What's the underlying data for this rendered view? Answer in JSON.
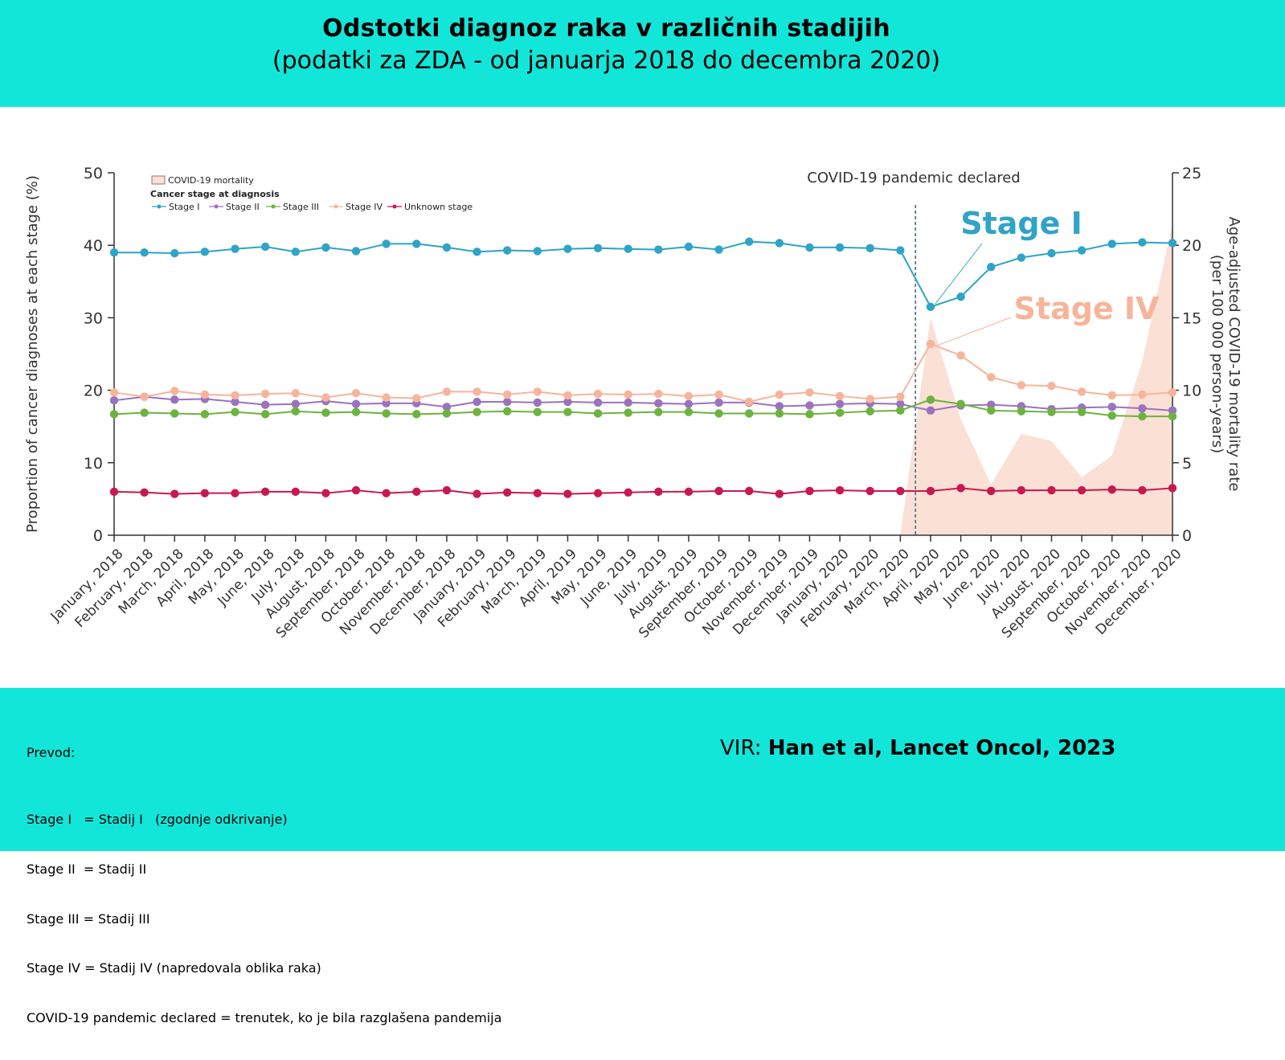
{
  "header": {
    "title": "Odstotki diagnoz raka v različnih stadijih",
    "subtitle": "(podatki za ZDA - od januarja 2018 do decembra 2020)"
  },
  "chart_data": {
    "type": "line",
    "ylabel": "Proportion of cancer diagnoses at each stage (%)",
    "y2label_line1": "Age-adjusted COVID-19 mortality rate",
    "y2label_line2": "(per 100 000 person-years)",
    "ylim": [
      0,
      50
    ],
    "yticks": [
      0,
      10,
      20,
      30,
      40,
      50
    ],
    "y2lim": [
      0,
      25
    ],
    "y2ticks": [
      0,
      5,
      10,
      15,
      20,
      25
    ],
    "annotation": "COVID-19 pandemic declared",
    "legend_title": "Cancer stage at diagnosis",
    "legend_area_label": "COVID-19 mortality",
    "callout_stage1": "Stage I",
    "callout_stage4": "Stage IV",
    "categories": [
      "January, 2018",
      "February, 2018",
      "March, 2018",
      "April, 2018",
      "May, 2018",
      "June, 2018",
      "July, 2018",
      "August, 2018",
      "September, 2018",
      "October, 2018",
      "November, 2018",
      "December, 2018",
      "January, 2019",
      "February, 2019",
      "March, 2019",
      "April, 2019",
      "May, 2019",
      "June, 2019",
      "July, 2019",
      "August, 2019",
      "September, 2019",
      "October, 2019",
      "November, 2019",
      "December, 2019",
      "January, 2020",
      "February, 2020",
      "March, 2020",
      "April, 2020",
      "May, 2020",
      "June, 2020",
      "July, 2020",
      "August, 2020",
      "September, 2020",
      "October, 2020",
      "November, 2020",
      "December, 2020"
    ],
    "series": [
      {
        "name": "Stage I",
        "color": "#2fa4c6",
        "values": [
          39.0,
          39.0,
          38.9,
          39.1,
          39.5,
          39.8,
          39.1,
          39.7,
          39.2,
          40.2,
          40.2,
          39.7,
          39.1,
          39.3,
          39.2,
          39.5,
          39.6,
          39.5,
          39.4,
          39.8,
          39.4,
          40.5,
          40.3,
          39.7,
          39.7,
          39.6,
          39.3,
          31.5,
          32.9,
          37.0,
          38.3,
          38.9,
          39.3,
          40.2,
          40.4,
          40.3
        ]
      },
      {
        "name": "Stage II",
        "color": "#9b72c0",
        "values": [
          18.6,
          19.1,
          18.7,
          18.8,
          18.4,
          18.0,
          18.1,
          18.5,
          18.1,
          18.2,
          18.2,
          17.7,
          18.4,
          18.4,
          18.3,
          18.4,
          18.3,
          18.3,
          18.2,
          18.1,
          18.3,
          18.3,
          17.8,
          17.9,
          18.1,
          18.2,
          18.1,
          17.2,
          17.9,
          18.0,
          17.8,
          17.4,
          17.6,
          17.7,
          17.5,
          17.2
        ]
      },
      {
        "name": "Stage III",
        "color": "#6cb33f",
        "values": [
          16.7,
          16.9,
          16.8,
          16.7,
          17.0,
          16.7,
          17.1,
          16.9,
          17.0,
          16.8,
          16.7,
          16.8,
          17.0,
          17.1,
          17.0,
          17.0,
          16.8,
          16.9,
          17.0,
          17.0,
          16.8,
          16.8,
          16.8,
          16.7,
          16.9,
          17.1,
          17.2,
          18.7,
          18.1,
          17.2,
          17.1,
          17.0,
          17.0,
          16.5,
          16.4,
          16.4
        ]
      },
      {
        "name": "Stage IV",
        "color": "#f6b59a",
        "values": [
          19.7,
          19.1,
          19.9,
          19.4,
          19.3,
          19.5,
          19.6,
          19.0,
          19.6,
          19.0,
          18.9,
          19.8,
          19.8,
          19.4,
          19.8,
          19.3,
          19.5,
          19.4,
          19.5,
          19.2,
          19.4,
          18.4,
          19.4,
          19.7,
          19.2,
          18.8,
          19.1,
          26.4,
          24.8,
          21.8,
          20.7,
          20.6,
          19.8,
          19.3,
          19.4,
          19.7
        ]
      },
      {
        "name": "Unknown stage",
        "color": "#c8194f",
        "values": [
          6.0,
          5.9,
          5.7,
          5.8,
          5.8,
          6.0,
          6.0,
          5.8,
          6.2,
          5.8,
          6.0,
          6.2,
          5.7,
          5.9,
          5.8,
          5.7,
          5.8,
          5.9,
          6.0,
          6.0,
          6.1,
          6.1,
          5.7,
          6.1,
          6.2,
          6.1,
          6.1,
          6.1,
          6.5,
          6.1,
          6.2,
          6.2,
          6.2,
          6.3,
          6.2,
          6.5
        ]
      }
    ],
    "covid_mortality": {
      "color": "#fbe0d6",
      "x": [
        "March, 2020",
        "April, 2020",
        "May, 2020",
        "June, 2020",
        "July, 2020",
        "August, 2020",
        "September, 2020",
        "October, 2020",
        "November, 2020",
        "December, 2020"
      ],
      "values": [
        0.0,
        15.0,
        8.0,
        3.5,
        7.0,
        6.5,
        4.0,
        5.5,
        12.0,
        21.5
      ]
    }
  },
  "translation": {
    "heading": "Prevod:",
    "lines": [
      "Stage I   = Stadij I   (zgodnje odkrivanje)",
      "Stage II  = Stadij II",
      "Stage III = Stadij III",
      "Stage IV = Stadij IV (napredovala oblika raka)",
      "COVID-19 pandemic declared = trenutek, ko je bila razglašena pandemija"
    ]
  },
  "source": {
    "prefix": "VIR: ",
    "text": "Han et al, Lancet Oncol, 2023"
  }
}
